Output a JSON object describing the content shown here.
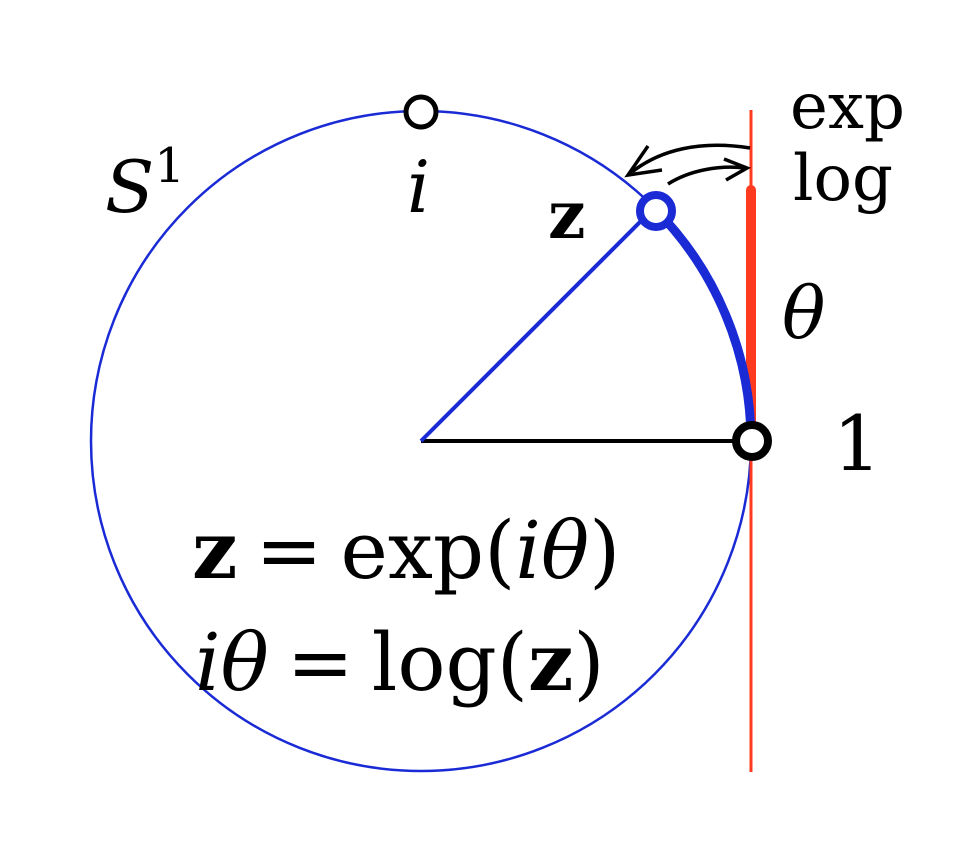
{
  "labels": {
    "circle_name": "S",
    "circle_superscript": "1",
    "point_i": "i",
    "point_z": "z",
    "point_one": "1",
    "angle": "θ",
    "map_exp": "exp",
    "map_log": "log"
  },
  "equations": {
    "eq1": {
      "lhs": "z",
      "op": "=",
      "func": "exp",
      "open": "(",
      "arg": "iθ",
      "close": ")"
    },
    "eq2": {
      "lhs": "iθ",
      "op": "=",
      "func": "log",
      "open": "(",
      "arg": "z",
      "close": ")"
    }
  },
  "colors": {
    "circle": "#1a2bd6",
    "radius_z": "#1a2bd6",
    "arc": "#1a2bd6",
    "tangent_line": "#ff3b1f",
    "radius_one": "#000000",
    "point_marker": "#000000",
    "arrows": "#000000"
  }
}
